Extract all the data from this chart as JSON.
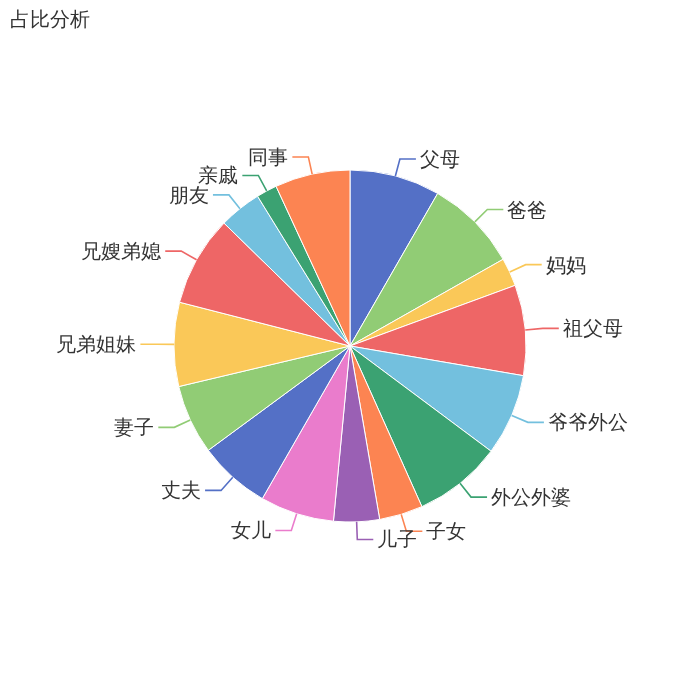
{
  "chart_data": {
    "type": "pie",
    "title": "占比分析",
    "categories": [
      "父母",
      "爸爸",
      "妈妈",
      "祖父母",
      "爷爷外公",
      "外公外婆",
      "子女",
      "儿子",
      "女儿",
      "丈夫",
      "妻子",
      "兄弟姐妹",
      "兄嫂弟媳",
      "朋友",
      "亲戚",
      "同事"
    ],
    "values": [
      8.3,
      8.5,
      2.6,
      8.3,
      7.5,
      8.1,
      4.0,
      4.2,
      6.8,
      6.6,
      6.4,
      7.7,
      8.3,
      3.9,
      1.9,
      6.9
    ],
    "colors": [
      "#5470c6",
      "#91cc75",
      "#fac858",
      "#ee6666",
      "#73c0de",
      "#3ba272",
      "#fc8452",
      "#9a60b4",
      "#ea7ccc",
      "#5470c6",
      "#91cc75",
      "#fac858",
      "#ee6666",
      "#73c0de",
      "#3ba272",
      "#fc8452"
    ]
  }
}
